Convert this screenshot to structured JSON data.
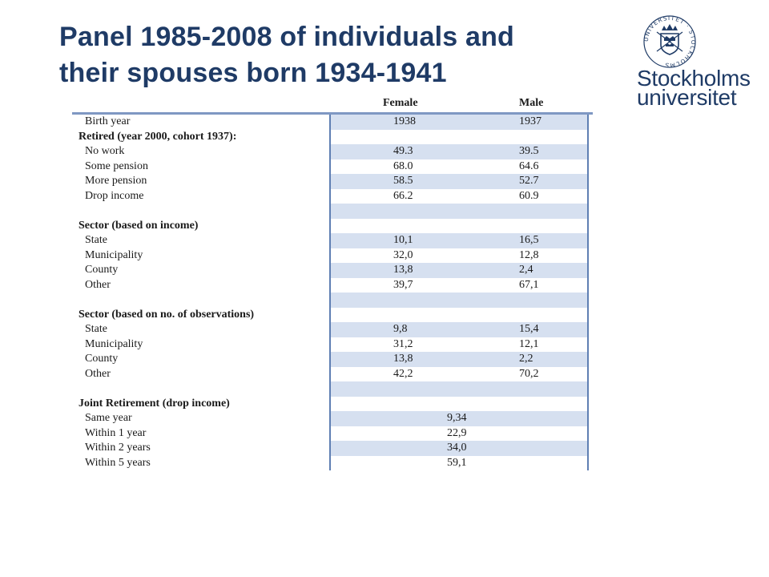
{
  "slide": {
    "title_line1": "Panel 1985-2008 of individuals and",
    "title_line2": "their spouses born 1934-1941"
  },
  "logo": {
    "line1": "Stockholms",
    "line2": "universitet",
    "seal_text": "UNIVERSITET · STOCKHOLMS"
  },
  "table": {
    "headers": {
      "female": "Female",
      "male": "Male"
    },
    "rows": [
      {
        "label": "Birth year",
        "female": "1938",
        "male": "1937"
      },
      {
        "label": "Retired (year 2000, cohort 1937):",
        "heading": true
      },
      {
        "label": "No work",
        "female": "49.3",
        "male": "39.5"
      },
      {
        "label": "Some pension",
        "female": "68.0",
        "male": "64.6"
      },
      {
        "label": "More pension",
        "female": "58.5",
        "male": "52.7"
      },
      {
        "label": "Drop income",
        "female": "66.2",
        "male": "60.9"
      },
      {
        "label": ""
      },
      {
        "label": "Sector (based on income)",
        "heading": true
      },
      {
        "label": "State",
        "female": "10,1",
        "male": "16,5"
      },
      {
        "label": "Municipality",
        "female": "32,0",
        "male": "12,8"
      },
      {
        "label": "County",
        "female": "13,8",
        "male": "2,4"
      },
      {
        "label": "Other",
        "female": "39,7",
        "male": "67,1"
      },
      {
        "label": ""
      },
      {
        "label": "Sector (based on no. of observations)",
        "heading": true
      },
      {
        "label": "State",
        "female": "9,8",
        "male": "15,4"
      },
      {
        "label": "Municipality",
        "female": "31,2",
        "male": "12,1"
      },
      {
        "label": "County",
        "female": "13,8",
        "male": "2,2"
      },
      {
        "label": "Other",
        "female": "42,2",
        "male": "70,2"
      },
      {
        "label": ""
      },
      {
        "label": "Joint Retirement (drop income)",
        "heading": true
      },
      {
        "label": "Same year",
        "joint": "9,34"
      },
      {
        "label": "Within 1 year",
        "joint": "22,9"
      },
      {
        "label": "Within 2 years",
        "joint": "34,0"
      },
      {
        "label": "Within 5 years",
        "joint": "59,1"
      }
    ]
  }
}
